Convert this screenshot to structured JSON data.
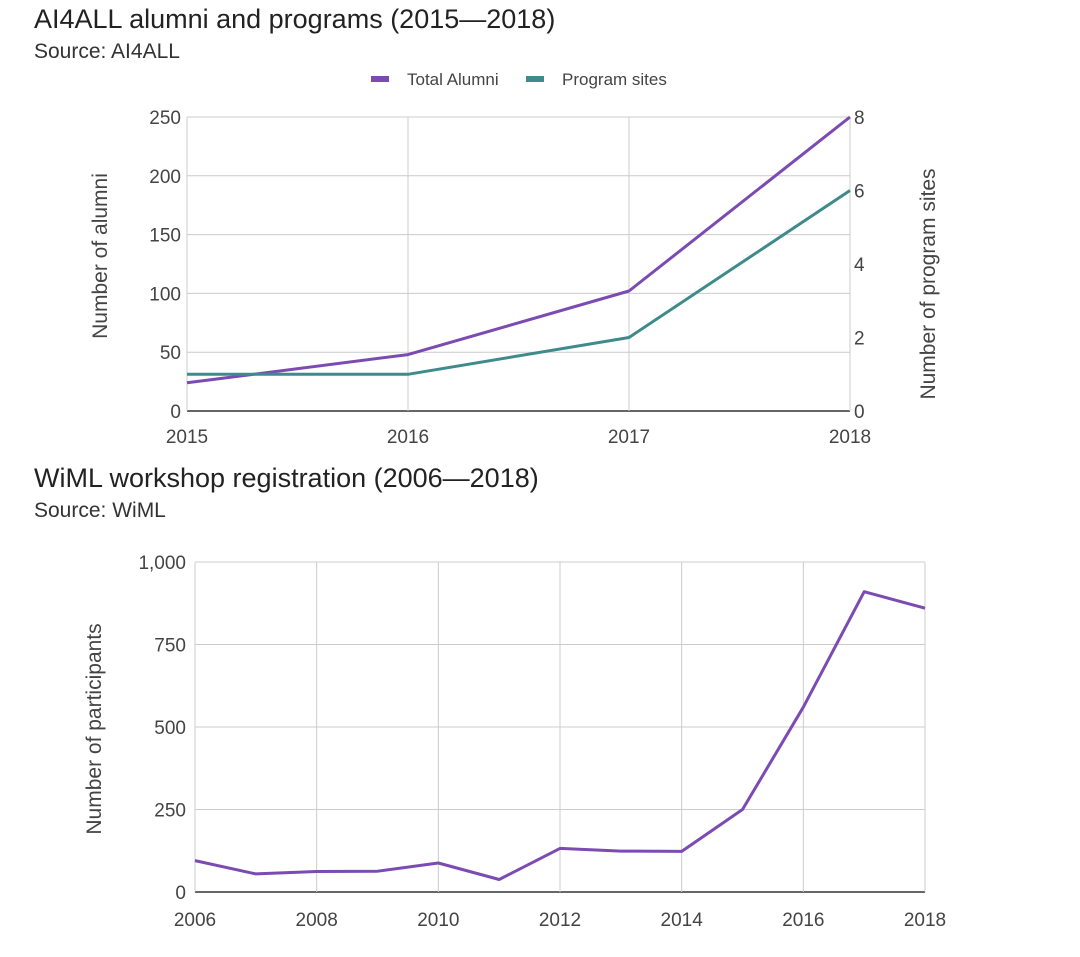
{
  "chart_data": [
    {
      "type": "line",
      "title": "AI4ALL alumni and programs (2015—2018)",
      "source": "Source: AI4ALL",
      "x": [
        2015,
        2016,
        2017,
        2018
      ],
      "x_tick_labels": [
        "2015",
        "2016",
        "2017",
        "2018"
      ],
      "ylabel": "Number of alumni",
      "y2label": "Number of program sites",
      "ylim": [
        0,
        250
      ],
      "y2lim": [
        0,
        8
      ],
      "y_ticks": [
        0,
        50,
        100,
        150,
        200,
        250
      ],
      "y_tick_labels": [
        "0",
        "50",
        "100",
        "150",
        "200",
        "250"
      ],
      "y2_ticks": [
        0,
        2,
        4,
        6,
        8
      ],
      "y2_tick_labels": [
        "0",
        "2",
        "4",
        "6",
        "8"
      ],
      "legend_position": "top-center",
      "series": [
        {
          "name": "Total Alumni",
          "axis": "left",
          "color": "#7b4bb3",
          "values": [
            24,
            48,
            102,
            250
          ]
        },
        {
          "name": "Program sites",
          "axis": "right",
          "color": "#3f8a8a",
          "values": [
            1,
            1,
            2,
            6
          ]
        }
      ]
    },
    {
      "type": "line",
      "title": "WiML workshop registration (2006—2018)",
      "source": "Source: WiML",
      "x": [
        2006,
        2007,
        2008,
        2009,
        2010,
        2011,
        2012,
        2013,
        2014,
        2015,
        2016,
        2017,
        2018
      ],
      "x_ticks": [
        2006,
        2008,
        2010,
        2012,
        2014,
        2016,
        2018
      ],
      "x_tick_labels": [
        "2006",
        "2008",
        "2010",
        "2012",
        "2014",
        "2016",
        "2018"
      ],
      "ylabel": "Number of participants",
      "ylim": [
        0,
        1000
      ],
      "y_ticks": [
        0,
        250,
        500,
        750,
        1000
      ],
      "y_tick_labels": [
        "0",
        "250",
        "500",
        "750",
        "1,000"
      ],
      "series": [
        {
          "name": "Participants",
          "color": "#7b4bb3",
          "values": [
            95,
            55,
            62,
            63,
            88,
            38,
            132,
            124,
            123,
            250,
            560,
            910,
            860
          ]
        }
      ]
    }
  ]
}
